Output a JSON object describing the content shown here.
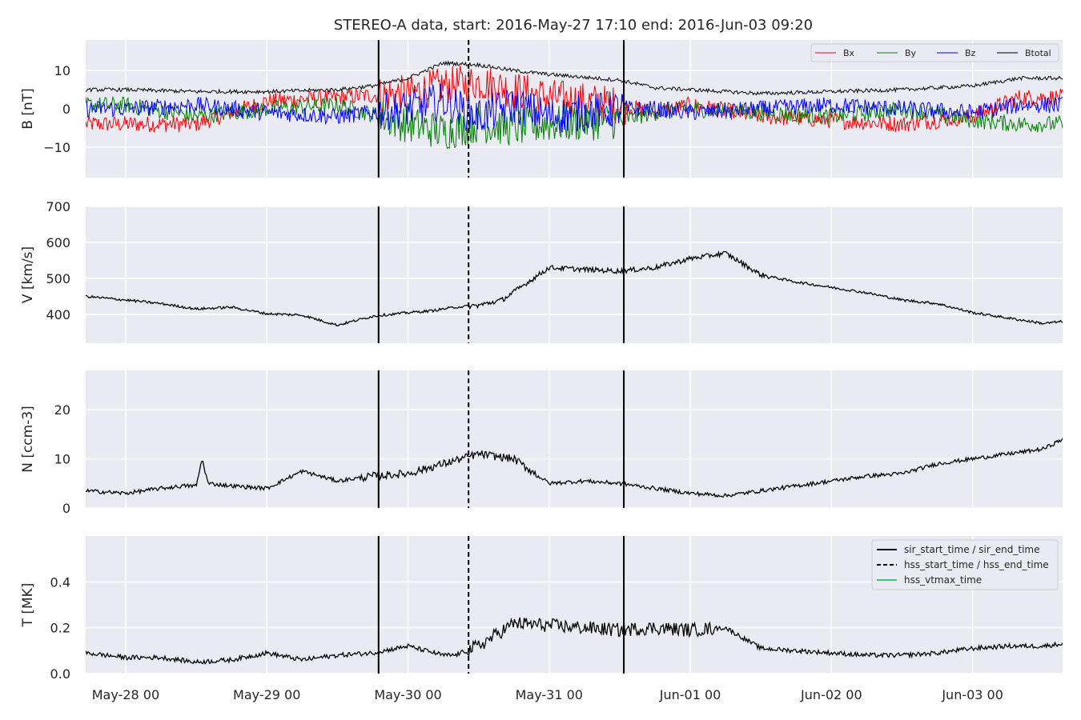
{
  "title": "STEREO-A data, start: 2016-May-27 17:10  end: 2016-Jun-03 09:20",
  "colors": {
    "panel_bg": "#eaeaf2",
    "grid": "#ffffff",
    "bx": "#ff0000",
    "by": "#008000",
    "bz": "#0000ff",
    "btotal": "#000000",
    "vtmax": "#2ecc71"
  },
  "x_ticks": [
    "May-28 00",
    "May-29 00",
    "May-30 00",
    "May-31 00",
    "Jun-01 00",
    "Jun-02 00",
    "Jun-03 00"
  ],
  "chart_data": [
    {
      "type": "line",
      "ylabel": "B [nT]",
      "ylim": [
        -18,
        18
      ],
      "yticks": [
        "−10",
        "0",
        "10"
      ],
      "yvals": [
        -10,
        0,
        10
      ],
      "x_range_hours": [
        -6.8,
        159.3
      ],
      "legend": "top-right",
      "series": [
        {
          "name": "Bx",
          "color": "#ff0000",
          "x": [
            0,
            12,
            24,
            36,
            48,
            54,
            60,
            66,
            72,
            84,
            90,
            96,
            108,
            120,
            132,
            144,
            152
          ],
          "values": [
            -4,
            -4,
            2,
            3,
            4,
            6,
            7,
            5,
            3,
            1,
            -1,
            1,
            -2,
            -3,
            -4,
            -2,
            3
          ]
        },
        {
          "name": "By",
          "color": "#008000",
          "x": [
            0,
            12,
            24,
            36,
            48,
            54,
            60,
            66,
            72,
            84,
            90,
            96,
            108,
            120,
            132,
            144,
            152
          ],
          "values": [
            1,
            -2,
            0,
            1,
            -4,
            -6,
            -4,
            -5,
            -4,
            -3,
            -1,
            0,
            -1,
            -2,
            0,
            -3,
            -4
          ]
        },
        {
          "name": "Bz",
          "color": "#0000ff",
          "x": [
            0,
            12,
            24,
            36,
            48,
            54,
            60,
            66,
            72,
            84,
            90,
            96,
            108,
            120,
            132,
            144,
            152
          ],
          "values": [
            0,
            1,
            -1,
            -2,
            0,
            2,
            -2,
            1,
            -2,
            0,
            0,
            -1,
            0,
            1,
            0,
            -1,
            1
          ]
        },
        {
          "name": "Btotal",
          "color": "#000000",
          "x": [
            0,
            12,
            24,
            36,
            42,
            48,
            54,
            60,
            66,
            72,
            84,
            90,
            96,
            108,
            120,
            132,
            144,
            152
          ],
          "values": [
            5,
            4.5,
            4.5,
            5,
            6,
            8,
            12,
            11.5,
            10,
            9,
            7.5,
            5.5,
            5,
            4,
            4.5,
            5,
            6,
            8
          ]
        }
      ]
    },
    {
      "type": "line",
      "ylabel": "V [km/s]",
      "ylim": [
        320,
        700
      ],
      "yticks": [
        "400",
        "500",
        "600",
        "700"
      ],
      "yvals": [
        400,
        500,
        600,
        700
      ],
      "x_range_hours": [
        -6.8,
        159.3
      ],
      "series": [
        {
          "name": "V",
          "color": "#000000",
          "x": [
            -6.8,
            0,
            6,
            12,
            18,
            24,
            30,
            36,
            42,
            48,
            52,
            56,
            60,
            64,
            72,
            78,
            84,
            90,
            96,
            102,
            108,
            114,
            120,
            126,
            132,
            138,
            144,
            150,
            156,
            159.3
          ],
          "values": [
            450,
            440,
            430,
            415,
            420,
            402,
            398,
            370,
            395,
            405,
            410,
            420,
            425,
            440,
            530,
            525,
            520,
            530,
            555,
            570,
            510,
            490,
            475,
            460,
            440,
            430,
            405,
            390,
            375,
            380
          ]
        }
      ]
    },
    {
      "type": "line",
      "ylabel": "N [ccm-3]",
      "ylim": [
        0,
        28
      ],
      "yticks": [
        "0",
        "10",
        "20"
      ],
      "yvals": [
        0,
        10,
        20
      ],
      "x_range_hours": [
        -6.8,
        159.3
      ],
      "series": [
        {
          "name": "N",
          "color": "#000000",
          "x": [
            -6.8,
            0,
            6,
            10,
            12,
            13,
            14,
            18,
            24,
            30,
            36,
            42,
            48,
            54,
            60,
            66,
            72,
            78,
            84,
            90,
            96,
            102,
            108,
            114,
            120,
            126,
            132,
            138,
            144,
            150,
            156,
            159.3
          ],
          "values": [
            3.5,
            3,
            4,
            4.5,
            4.5,
            10,
            5,
            4.5,
            4,
            7.5,
            5.5,
            6.5,
            7,
            9,
            11,
            10,
            5,
            5.5,
            5,
            4,
            3,
            2.5,
            3.5,
            4.5,
            5.5,
            6.5,
            7,
            9,
            10,
            11,
            12,
            14
          ]
        }
      ]
    },
    {
      "type": "line",
      "ylabel": "T [MK]",
      "ylim": [
        0,
        0.6
      ],
      "yticks": [
        "0.0",
        "0.2",
        "0.4"
      ],
      "yvals": [
        0,
        0.2,
        0.4
      ],
      "x_range_hours": [
        -6.8,
        159.3
      ],
      "legend": "top-right",
      "series": [
        {
          "name": "T",
          "color": "#000000",
          "x": [
            -6.8,
            0,
            6,
            12,
            18,
            24,
            30,
            36,
            42,
            48,
            54,
            56,
            60,
            66,
            72,
            78,
            84,
            90,
            96,
            102,
            108,
            114,
            120,
            126,
            132,
            138,
            144,
            150,
            156,
            159.3
          ],
          "values": [
            0.09,
            0.07,
            0.07,
            0.05,
            0.06,
            0.09,
            0.06,
            0.08,
            0.09,
            0.12,
            0.08,
            0.08,
            0.12,
            0.22,
            0.21,
            0.2,
            0.19,
            0.2,
            0.19,
            0.2,
            0.11,
            0.1,
            0.09,
            0.08,
            0.08,
            0.09,
            0.11,
            0.12,
            0.12,
            0.13
          ]
        }
      ]
    }
  ],
  "markers": {
    "sir_start_hours": 43.0,
    "hss_start_hours": 58.3,
    "sir_end_hours": 84.7
  },
  "legend_T": [
    {
      "label": "sir_start_time / sir_end_time",
      "style": "solid",
      "color": "#000000"
    },
    {
      "label": "hss_start_time / hss_end_time",
      "style": "dashed",
      "color": "#000000"
    },
    {
      "label": "hss_vtmax_time",
      "style": "solid",
      "color": "#2ecc71"
    }
  ]
}
